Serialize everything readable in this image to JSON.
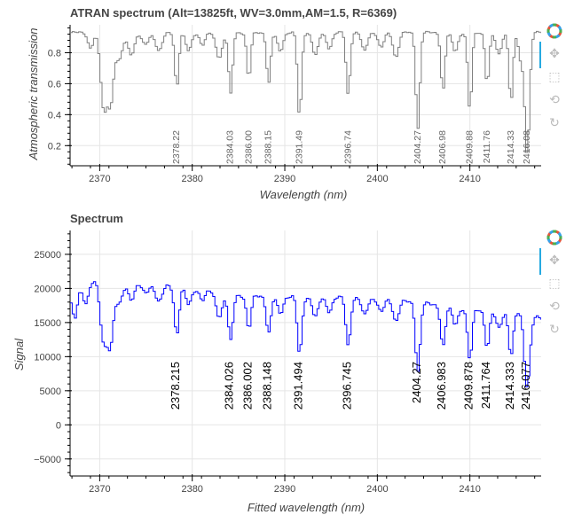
{
  "toolbar": {
    "icons": [
      "bokeh-logo-icon",
      "pan-icon",
      "box-zoom-icon",
      "wheel-zoom-icon",
      "reset-icon"
    ],
    "glyphs": [
      "✥",
      "⬚",
      "⟲",
      "↻"
    ]
  },
  "chart_data": [
    {
      "type": "line",
      "title": "ATRAN spectrum (Alt=13825ft, WV=3.0mm,AM=1.5, R=6369)",
      "xlabel": "Wavelength (nm)",
      "ylabel": "Atmospheric transmission",
      "xlim": [
        2366.8,
        2417.7
      ],
      "ylim": [
        0.07,
        0.98
      ],
      "x_ticks": [
        2370,
        2380,
        2390,
        2400,
        2410
      ],
      "x_tick_labels": [
        "2370",
        "2380",
        "2390",
        "2400",
        "2410"
      ],
      "y_ticks": [
        0.2,
        0.4,
        0.6,
        0.8
      ],
      "y_tick_labels": [
        "0.2",
        "0.4",
        "0.6",
        "0.8"
      ],
      "grid": true,
      "color": "#7f7f7f",
      "baseline": 0.93,
      "absorption_lines": [
        {
          "x": 2368.9,
          "depth": 0.1,
          "width": 0.28
        },
        {
          "x": 2370.35,
          "depth": 0.5,
          "width": 0.35
        },
        {
          "x": 2371.1,
          "depth": 0.42,
          "width": 0.3
        },
        {
          "x": 2372.0,
          "depth": 0.18,
          "width": 0.35
        },
        {
          "x": 2373.3,
          "depth": 0.14,
          "width": 0.35
        },
        {
          "x": 2374.8,
          "depth": 0.08,
          "width": 0.35
        },
        {
          "x": 2376.3,
          "depth": 0.12,
          "width": 0.35
        },
        {
          "x": 2378.22,
          "depth": 0.35,
          "width": 0.22
        },
        {
          "x": 2379.5,
          "depth": 0.12,
          "width": 0.3
        },
        {
          "x": 2381.0,
          "depth": 0.08,
          "width": 0.3
        },
        {
          "x": 2382.8,
          "depth": 0.16,
          "width": 0.35
        },
        {
          "x": 2384.03,
          "depth": 0.4,
          "width": 0.22
        },
        {
          "x": 2386.0,
          "depth": 0.3,
          "width": 0.22
        },
        {
          "x": 2388.15,
          "depth": 0.33,
          "width": 0.22
        },
        {
          "x": 2389.4,
          "depth": 0.12,
          "width": 0.3
        },
        {
          "x": 2391.49,
          "depth": 0.55,
          "width": 0.22
        },
        {
          "x": 2393.2,
          "depth": 0.15,
          "width": 0.3
        },
        {
          "x": 2394.7,
          "depth": 0.1,
          "width": 0.3
        },
        {
          "x": 2396.74,
          "depth": 0.4,
          "width": 0.22
        },
        {
          "x": 2398.5,
          "depth": 0.12,
          "width": 0.3
        },
        {
          "x": 2400.3,
          "depth": 0.1,
          "width": 0.3
        },
        {
          "x": 2401.9,
          "depth": 0.16,
          "width": 0.3
        },
        {
          "x": 2404.27,
          "depth": 0.62,
          "width": 0.22
        },
        {
          "x": 2406.98,
          "depth": 0.38,
          "width": 0.22
        },
        {
          "x": 2408.3,
          "depth": 0.12,
          "width": 0.3
        },
        {
          "x": 2409.88,
          "depth": 0.5,
          "width": 0.22
        },
        {
          "x": 2411.76,
          "depth": 0.33,
          "width": 0.22
        },
        {
          "x": 2413.0,
          "depth": 0.14,
          "width": 0.3
        },
        {
          "x": 2414.33,
          "depth": 0.45,
          "width": 0.22
        },
        {
          "x": 2415.4,
          "depth": 0.18,
          "width": 0.25
        },
        {
          "x": 2416.08,
          "depth": 0.78,
          "width": 0.26
        }
      ],
      "annotations": [
        "2378.22",
        "2384.03",
        "2386.00",
        "2388.15",
        "2391.49",
        "2396.74",
        "2404.27",
        "2406.98",
        "2409.88",
        "2411.76",
        "2414.33",
        "2416.08"
      ],
      "annotation_x": [
        2378.22,
        2384.03,
        2386.0,
        2388.15,
        2391.49,
        2396.74,
        2404.27,
        2406.98,
        2409.88,
        2411.76,
        2414.33,
        2416.08
      ]
    },
    {
      "type": "line",
      "title": "Spectrum",
      "xlabel": "Fitted wavelength (nm)",
      "ylabel": "Signal",
      "xlim": [
        2366.8,
        2417.7
      ],
      "ylim": [
        -7500,
        28500
      ],
      "x_ticks": [
        2370,
        2380,
        2390,
        2400,
        2410
      ],
      "x_tick_labels": [
        "2370",
        "2380",
        "2390",
        "2400",
        "2410"
      ],
      "y_ticks": [
        -5000,
        0,
        5000,
        10000,
        15000,
        20000,
        25000
      ],
      "y_tick_labels": [
        "−5000",
        "0",
        "5000",
        "10000",
        "15000",
        "20000",
        "25000"
      ],
      "grid": true,
      "color": "#0000ff",
      "baseline": 20000,
      "continuum_points": [
        [
          2366.8,
          19000
        ],
        [
          2369.5,
          21500
        ],
        [
          2380,
          20000
        ],
        [
          2385,
          19000
        ],
        [
          2400,
          18500
        ],
        [
          2410,
          17000
        ],
        [
          2415,
          16500
        ],
        [
          2417.7,
          15500
        ]
      ],
      "absorption_lines": [
        {
          "x": 2367.2,
          "depth": 4000,
          "width": 0.25
        },
        {
          "x": 2368.4,
          "depth": 2500,
          "width": 0.3
        },
        {
          "x": 2370.35,
          "depth": 9500,
          "width": 0.4
        },
        {
          "x": 2371.1,
          "depth": 8000,
          "width": 0.3
        },
        {
          "x": 2372.0,
          "depth": 3500,
          "width": 0.35
        },
        {
          "x": 2373.3,
          "depth": 2500,
          "width": 0.35
        },
        {
          "x": 2374.8,
          "depth": 1500,
          "width": 0.35
        },
        {
          "x": 2376.3,
          "depth": 2500,
          "width": 0.35
        },
        {
          "x": 2378.215,
          "depth": 7000,
          "width": 0.25
        },
        {
          "x": 2379.5,
          "depth": 2500,
          "width": 0.3
        },
        {
          "x": 2381.0,
          "depth": 1500,
          "width": 0.3
        },
        {
          "x": 2382.8,
          "depth": 3500,
          "width": 0.35
        },
        {
          "x": 2384.026,
          "depth": 7000,
          "width": 0.25
        },
        {
          "x": 2386.002,
          "depth": 5000,
          "width": 0.25
        },
        {
          "x": 2388.148,
          "depth": 5500,
          "width": 0.25
        },
        {
          "x": 2389.4,
          "depth": 2500,
          "width": 0.3
        },
        {
          "x": 2391.494,
          "depth": 8500,
          "width": 0.25
        },
        {
          "x": 2393.2,
          "depth": 3000,
          "width": 0.3
        },
        {
          "x": 2394.7,
          "depth": 2000,
          "width": 0.3
        },
        {
          "x": 2396.745,
          "depth": 7000,
          "width": 0.25
        },
        {
          "x": 2398.5,
          "depth": 2500,
          "width": 0.3
        },
        {
          "x": 2400.3,
          "depth": 2000,
          "width": 0.3
        },
        {
          "x": 2401.9,
          "depth": 3000,
          "width": 0.3
        },
        {
          "x": 2404.27,
          "depth": 10000,
          "width": 0.25
        },
        {
          "x": 2406.983,
          "depth": 6000,
          "width": 0.25
        },
        {
          "x": 2408.3,
          "depth": 2500,
          "width": 0.3
        },
        {
          "x": 2409.878,
          "depth": 7500,
          "width": 0.25
        },
        {
          "x": 2411.764,
          "depth": 5500,
          "width": 0.25
        },
        {
          "x": 2413.0,
          "depth": 2500,
          "width": 0.3
        },
        {
          "x": 2414.333,
          "depth": 6500,
          "width": 0.25
        },
        {
          "x": 2416.077,
          "depth": 10500,
          "width": 0.3
        }
      ],
      "annotations": [
        "2378.215",
        "2384.026",
        "2386.002",
        "2388.148",
        "2391.494",
        "2396.745",
        "2404.27",
        "2406.983",
        "2409.878",
        "2411.764",
        "2414.333",
        "2416.077"
      ],
      "annotation_x": [
        2378.215,
        2384.026,
        2386.002,
        2388.148,
        2391.494,
        2396.745,
        2404.27,
        2406.983,
        2409.878,
        2411.764,
        2414.333,
        2416.077
      ]
    }
  ]
}
